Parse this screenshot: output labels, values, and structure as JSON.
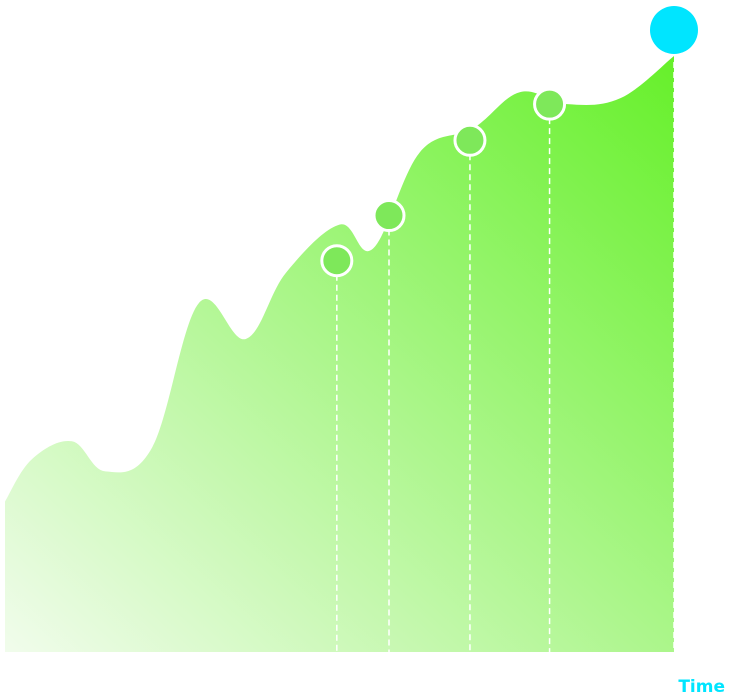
{
  "chart_data": {
    "type": "area",
    "title": "",
    "xlabel": "Time",
    "ylabel": "",
    "grid": false,
    "legend": "none",
    "x": [
      0,
      4,
      10,
      15,
      22,
      29,
      36,
      42,
      50,
      55,
      62,
      70,
      77,
      84,
      92,
      100
    ],
    "y": [
      25,
      32,
      35,
      30,
      34,
      58,
      52,
      63,
      71,
      67,
      83,
      87,
      93,
      91,
      92,
      99
    ],
    "markers": [
      {
        "x": 49.6,
        "y": 65
      },
      {
        "x": 57.4,
        "y": 72.5
      },
      {
        "x": 69.5,
        "y": 85
      },
      {
        "x": 81.4,
        "y": 91
      }
    ],
    "highlight": {
      "x": 100,
      "y": 100
    },
    "colors": {
      "fill_start": "#f1fcec",
      "fill_end": "#66f02a",
      "marker": "#7ee85a",
      "marker_stroke": "#ffffff",
      "guide": "#ffffff",
      "highlight": "#00e5ff",
      "xlabel": "#00e5ff"
    }
  }
}
